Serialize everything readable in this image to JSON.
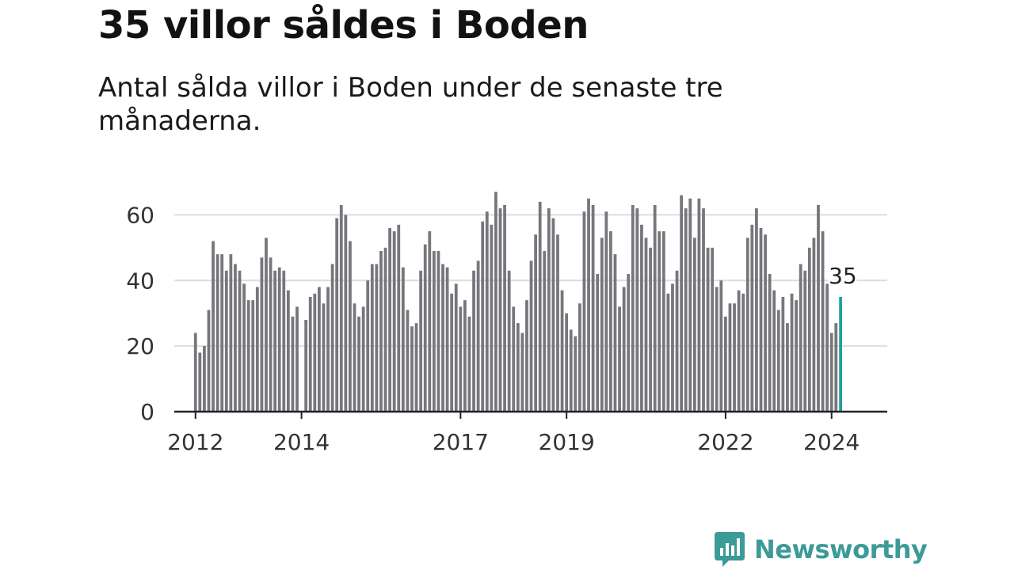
{
  "title": "35 villor såldes i Boden",
  "subtitle": "Antal sålda villor i Boden under de senaste tre månaderna.",
  "brand": {
    "name": "Newsworthy"
  },
  "colors": {
    "bar": "#76767c",
    "highlight": "#21a09a",
    "axis": "#222222",
    "grid": "#dddddd",
    "brand": "#3c9a98"
  },
  "chart_data": {
    "type": "bar",
    "title": "35 villor såldes i Boden",
    "xlabel": "",
    "ylabel": "",
    "ylim": [
      0,
      70
    ],
    "yticks": [
      0,
      20,
      40,
      60
    ],
    "x_start": 2012.0,
    "x_step": 0.08333,
    "x_range": [
      2011.6,
      2025.05
    ],
    "xticks": [
      "2012",
      "2014",
      "2017",
      "2019",
      "2022",
      "2024"
    ],
    "xtick_values": [
      2012,
      2014,
      2017,
      2019,
      2022,
      2024
    ],
    "highlight": {
      "x": 2024.17,
      "value": 35,
      "label": "35"
    },
    "values": [
      24,
      18,
      20,
      31,
      52,
      48,
      48,
      43,
      48,
      45,
      43,
      39,
      34,
      34,
      38,
      47,
      53,
      47,
      43,
      44,
      43,
      37,
      29,
      32,
      null,
      28,
      35,
      36,
      38,
      33,
      38,
      45,
      59,
      63,
      60,
      52,
      33,
      29,
      32,
      40,
      45,
      45,
      49,
      50,
      56,
      55,
      57,
      44,
      31,
      26,
      27,
      43,
      51,
      55,
      49,
      49,
      45,
      44,
      36,
      39,
      32,
      34,
      29,
      43,
      46,
      58,
      61,
      57,
      67,
      62,
      63,
      43,
      32,
      27,
      24,
      34,
      46,
      54,
      64,
      49,
      62,
      59,
      54,
      37,
      30,
      25,
      23,
      33,
      61,
      65,
      63,
      42,
      53,
      61,
      55,
      48,
      32,
      38,
      42,
      63,
      62,
      57,
      53,
      50,
      63,
      55,
      55,
      36,
      39,
      43,
      66,
      62,
      65,
      53,
      65,
      62,
      50,
      50,
      38,
      40,
      29,
      33,
      33,
      37,
      36,
      53,
      57,
      62,
      56,
      54,
      42,
      37,
      31,
      35,
      27,
      36,
      34,
      45,
      43,
      50,
      53,
      63,
      55,
      39,
      24,
      27
    ]
  }
}
